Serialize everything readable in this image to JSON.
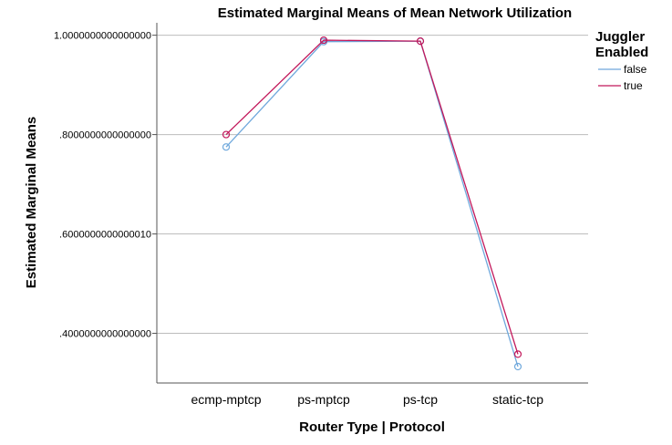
{
  "chart_data": {
    "type": "line",
    "title": "Estimated Marginal Means of Mean Network Utilization",
    "xlabel": "Router Type | Protocol",
    "ylabel": "Estimated Marginal Means",
    "categories": [
      "ecmp-mptcp",
      "ps-mptcp",
      "ps-tcp",
      "static-tcp"
    ],
    "ylim": [
      0.3,
      1.025
    ],
    "yticks": [
      {
        "value": 1.0,
        "label": "1.0000000000000000"
      },
      {
        "value": 0.8,
        "label": ".8000000000000000"
      },
      {
        "value": 0.6,
        "label": ".6000000000000010"
      },
      {
        "value": 0.4,
        "label": ".4000000000000000"
      }
    ],
    "grid": true,
    "legend": {
      "title_line1": "Juggler",
      "title_line2": "Enabled",
      "position": "top-right"
    },
    "series": [
      {
        "name": "false",
        "color": "#6fa8dc",
        "values": [
          0.775,
          0.987,
          0.988,
          0.333
        ]
      },
      {
        "name": "true",
        "color": "#c2185b",
        "values": [
          0.8,
          0.99,
          0.988,
          0.358
        ]
      }
    ]
  }
}
